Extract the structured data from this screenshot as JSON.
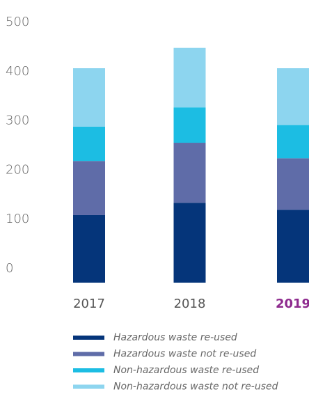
{
  "chart_data": {
    "type": "stacked_bar",
    "categories": [
      "2017",
      "2018",
      "2019"
    ],
    "category_colors": [
      "#555555",
      "#555555",
      "#8e2a8e"
    ],
    "series": [
      {
        "name": "Hazardous waste re-used",
        "color": "#05357a",
        "values": [
          126,
          149,
          136
        ]
      },
      {
        "name": "Hazardous waste not re-used",
        "color": "#5f6ca8",
        "values": [
          101,
          112,
          96
        ]
      },
      {
        "name": "Non-hazardous waste re-used",
        "color": "#1cbde3",
        "values": [
          64,
          66,
          62
        ]
      },
      {
        "name": "Non-hazardous waste not re-used",
        "color": "#8dd5ef",
        "values": [
          109,
          111,
          106
        ]
      }
    ],
    "ylim": [
      0,
      500
    ],
    "yticks": [
      0,
      100,
      200,
      300,
      400,
      500
    ],
    "grid": false,
    "legend": "bottom"
  }
}
